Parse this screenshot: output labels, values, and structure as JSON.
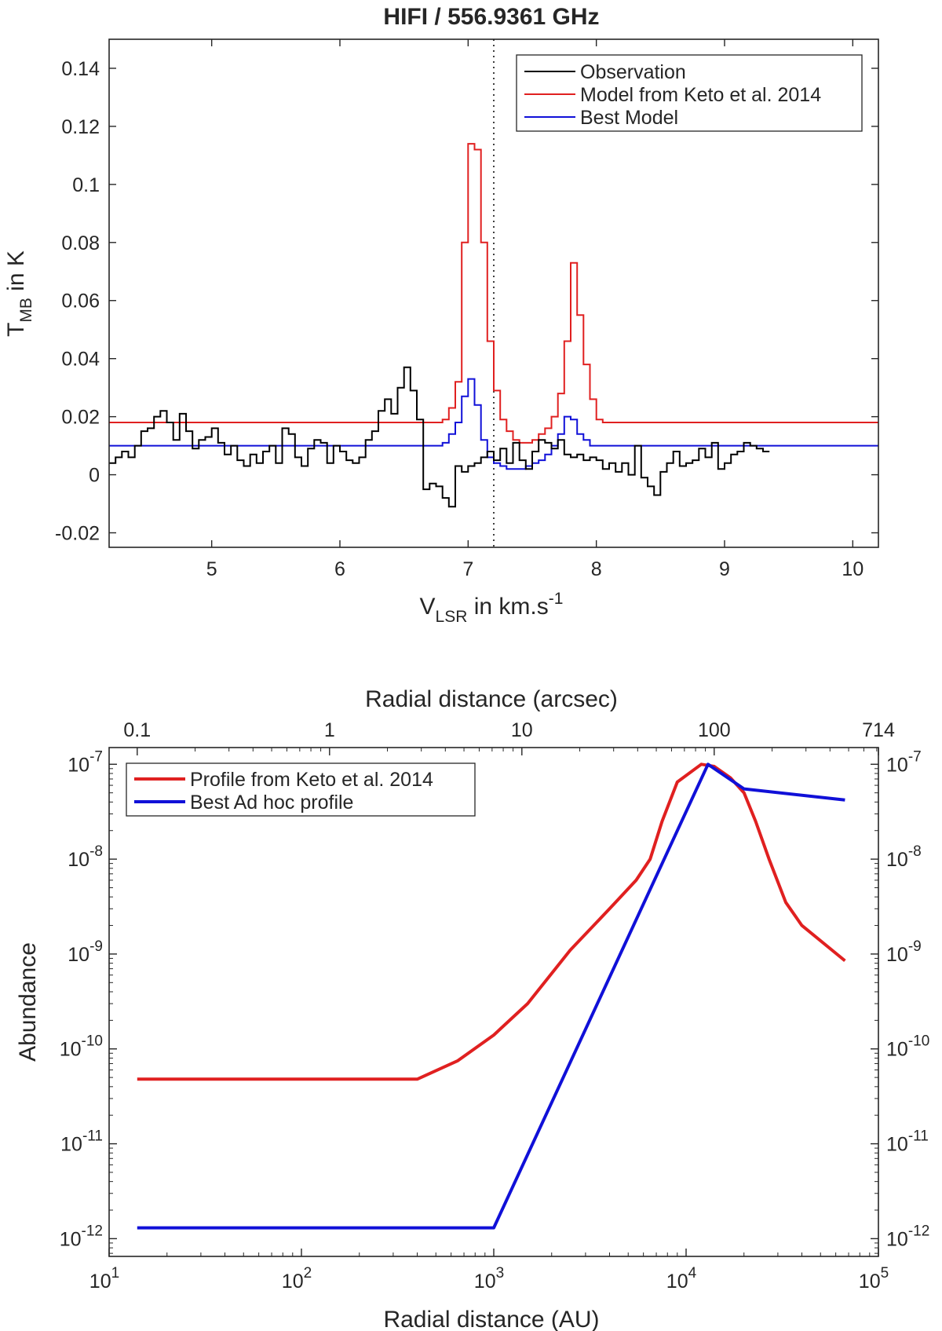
{
  "chart_data": [
    {
      "type": "line",
      "title": "HIFI / 556.9361 GHz",
      "xlabel": {
        "base": "V",
        "sub": "LSR",
        "rest": " in km.s",
        "sup": "-1"
      },
      "ylabel": {
        "base": "T",
        "sub": "MB",
        "rest": " in K"
      },
      "xlim": [
        4.2,
        10.2
      ],
      "ylim": [
        -0.025,
        0.15
      ],
      "xticks": [
        5,
        6,
        7,
        8,
        9,
        10
      ],
      "xtick_labels": [
        "5",
        "6",
        "7",
        "8",
        "9",
        "10"
      ],
      "yticks": [
        -0.02,
        0,
        0.02,
        0.04,
        0.06,
        0.08,
        0.1,
        0.12,
        0.14
      ],
      "ytick_labels": [
        "-0.02",
        "0",
        "0.02",
        "0.04",
        "0.06",
        "0.08",
        "0.1",
        "0.12",
        "0.14"
      ],
      "vline_x": 7.2,
      "legend_position": "top-right",
      "step": {
        "x0": 4.2,
        "dx": 0.05
      },
      "series": [
        {
          "name": "Observation",
          "color": "#000000",
          "values": [
            0.004,
            0.006,
            0.008,
            0.006,
            0.01,
            0.015,
            0.016,
            0.02,
            0.022,
            0.018,
            0.012,
            0.021,
            0.015,
            0.009,
            0.012,
            0.013,
            0.016,
            0.011,
            0.007,
            0.01,
            0.005,
            0.003,
            0.007,
            0.004,
            0.008,
            0.01,
            0.004,
            0.016,
            0.014,
            0.006,
            0.003,
            0.009,
            0.012,
            0.011,
            0.004,
            0.01,
            0.008,
            0.005,
            0.004,
            0.006,
            0.012,
            0.015,
            0.022,
            0.026,
            0.021,
            0.03,
            0.037,
            0.029,
            0.019,
            -0.005,
            -0.003,
            -0.004,
            -0.008,
            -0.011,
            0.003,
            0.001,
            0.003,
            0.004,
            0.006,
            0.008,
            0.005,
            0.009,
            0.004,
            0.011,
            0.005,
            0.002,
            0.008,
            0.012,
            0.011,
            0.009,
            0.012,
            0.007,
            0.006,
            0.007,
            0.005,
            0.006,
            0.005,
            0.002,
            0.004,
            0.001,
            0.004,
            0.0,
            0.01,
            -0.001,
            -0.004,
            -0.007,
            0.001,
            0.004,
            0.008,
            0.003,
            0.004,
            0.005,
            0.009,
            0.006,
            0.011,
            0.002,
            0.004,
            0.007,
            0.008,
            0.011,
            0.01,
            0.009,
            0.008
          ],
          "approximate": true
        },
        {
          "name": "Model from Keto et al. 2014",
          "color": "#e02020",
          "values": [
            0.018,
            0.018,
            0.018,
            0.018,
            0.018,
            0.018,
            0.018,
            0.018,
            0.018,
            0.018,
            0.018,
            0.018,
            0.018,
            0.018,
            0.018,
            0.018,
            0.018,
            0.018,
            0.018,
            0.018,
            0.018,
            0.018,
            0.018,
            0.018,
            0.018,
            0.018,
            0.018,
            0.018,
            0.018,
            0.018,
            0.018,
            0.018,
            0.018,
            0.018,
            0.018,
            0.018,
            0.018,
            0.018,
            0.018,
            0.018,
            0.018,
            0.018,
            0.018,
            0.018,
            0.018,
            0.018,
            0.018,
            0.018,
            0.018,
            0.018,
            0.018,
            0.018,
            0.019,
            0.023,
            0.032,
            0.08,
            0.114,
            0.112,
            0.08,
            0.046,
            0.029,
            0.019,
            0.015,
            0.012,
            0.011,
            0.011,
            0.012,
            0.014,
            0.016,
            0.02,
            0.028,
            0.046,
            0.073,
            0.055,
            0.038,
            0.026,
            0.019,
            0.018,
            0.018,
            0.018,
            0.018,
            0.018,
            0.018,
            0.018,
            0.018,
            0.018,
            0.018,
            0.018,
            0.018,
            0.018,
            0.018,
            0.018,
            0.018,
            0.018,
            0.018,
            0.018,
            0.018,
            0.018,
            0.018,
            0.018,
            0.018,
            0.018,
            0.018,
            0.018,
            0.018,
            0.018,
            0.018,
            0.018,
            0.018,
            0.018,
            0.018,
            0.018,
            0.018,
            0.018,
            0.018,
            0.018,
            0.018,
            0.018,
            0.018,
            0.018,
            0.018
          ],
          "approximate": true
        },
        {
          "name": "Best Model",
          "color": "#1010d8",
          "values": [
            0.01,
            0.01,
            0.01,
            0.01,
            0.01,
            0.01,
            0.01,
            0.01,
            0.01,
            0.01,
            0.01,
            0.01,
            0.01,
            0.01,
            0.01,
            0.01,
            0.01,
            0.01,
            0.01,
            0.01,
            0.01,
            0.01,
            0.01,
            0.01,
            0.01,
            0.01,
            0.01,
            0.01,
            0.01,
            0.01,
            0.01,
            0.01,
            0.01,
            0.01,
            0.01,
            0.01,
            0.01,
            0.01,
            0.01,
            0.01,
            0.01,
            0.01,
            0.01,
            0.01,
            0.01,
            0.01,
            0.01,
            0.01,
            0.01,
            0.01,
            0.01,
            0.01,
            0.011,
            0.014,
            0.018,
            0.027,
            0.033,
            0.024,
            0.012,
            0.006,
            0.004,
            0.003,
            0.002,
            0.002,
            0.002,
            0.003,
            0.004,
            0.005,
            0.007,
            0.01,
            0.014,
            0.02,
            0.019,
            0.014,
            0.012,
            0.01,
            0.01,
            0.01,
            0.01,
            0.01,
            0.01,
            0.01,
            0.01,
            0.01,
            0.01,
            0.01,
            0.01,
            0.01,
            0.01,
            0.01,
            0.01,
            0.01,
            0.01,
            0.01,
            0.01,
            0.01,
            0.01,
            0.01,
            0.01,
            0.01,
            0.01,
            0.01,
            0.01,
            0.01,
            0.01,
            0.01,
            0.01,
            0.01,
            0.01,
            0.01,
            0.01,
            0.01,
            0.01,
            0.01,
            0.01,
            0.01,
            0.01,
            0.01,
            0.01,
            0.01
          ],
          "approximate": true
        }
      ]
    },
    {
      "type": "line",
      "xlabel": "Radial distance (AU)",
      "ylabel": "Abundance",
      "top_xlabel": "Radial distance (arcsec)",
      "xscale": "log",
      "yscale": "log",
      "xlim": [
        10,
        100000
      ],
      "ylim": [
        6.5e-13,
        1.5e-07
      ],
      "xticks": [
        10,
        100,
        1000,
        10000,
        100000
      ],
      "xtick_labels": [
        {
          "base": "10",
          "sup": "1"
        },
        {
          "base": "10",
          "sup": "2"
        },
        {
          "base": "10",
          "sup": "3"
        },
        {
          "base": "10",
          "sup": "4"
        },
        {
          "base": "10",
          "sup": "5"
        }
      ],
      "yticks": [
        1e-12,
        1e-11,
        1e-10,
        1e-09,
        1e-08,
        1e-07
      ],
      "ytick_labels": [
        {
          "base": "10",
          "sup": "-12"
        },
        {
          "base": "10",
          "sup": "-11"
        },
        {
          "base": "10",
          "sup": "-10"
        },
        {
          "base": "10",
          "sup": "-9"
        },
        {
          "base": "10",
          "sup": "-8"
        },
        {
          "base": "10",
          "sup": "-7"
        }
      ],
      "top_xticks": [
        {
          "label": "0.1",
          "au": 14
        },
        {
          "label": "1",
          "au": 140
        },
        {
          "label": "10",
          "au": 1400
        },
        {
          "label": "100",
          "au": 14000
        },
        {
          "label": "714",
          "au": 100000
        }
      ],
      "legend_position": "top-left",
      "series": [
        {
          "name": "Profile from Keto et al. 2014",
          "color": "#e02020",
          "points": [
            [
              14,
              4.8e-11
            ],
            [
              400,
              4.8e-11
            ],
            [
              650,
              7.5e-11
            ],
            [
              1000,
              1.4e-10
            ],
            [
              1500,
              3e-10
            ],
            [
              2500,
              1.1e-09
            ],
            [
              4000,
              3e-09
            ],
            [
              5500,
              6e-09
            ],
            [
              6500,
              1e-08
            ],
            [
              7500,
              2.5e-08
            ],
            [
              9000,
              6.5e-08
            ],
            [
              12000,
              1e-07
            ],
            [
              14000,
              9.5e-08
            ],
            [
              17000,
              7.2e-08
            ],
            [
              20000,
              5e-08
            ],
            [
              23000,
              2.5e-08
            ],
            [
              27000,
              1e-08
            ],
            [
              33000,
              3.5e-09
            ],
            [
              40000,
              2e-09
            ],
            [
              67000,
              8.5e-10
            ]
          ],
          "approximate": true
        },
        {
          "name": "Best Ad hoc profile",
          "color": "#1010d8",
          "points": [
            [
              14,
              1.3e-12
            ],
            [
              1000,
              1.3e-12
            ],
            [
              13000,
              1e-07
            ],
            [
              20000,
              5.5e-08
            ],
            [
              67000,
              4.2e-08
            ]
          ],
          "approximate": true
        }
      ]
    }
  ]
}
